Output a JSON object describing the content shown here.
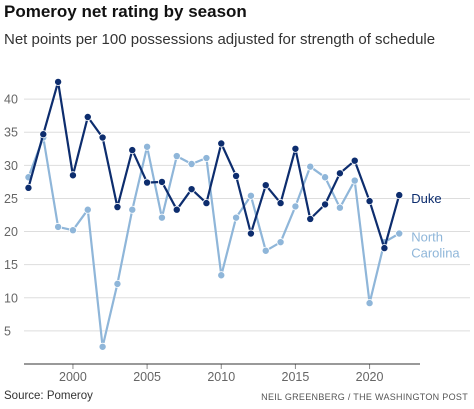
{
  "chart_data": {
    "type": "line",
    "title": "Pomeroy net rating by season",
    "subtitle": "Net points per 100 possessions adjusted for strength of schedule",
    "xlabel": "",
    "ylabel": "",
    "xlim": [
      1996.7,
      2023.4
    ],
    "ylim": [
      0,
      45
    ],
    "x_ticks": [
      2000,
      2005,
      2010,
      2015,
      2020
    ],
    "y_ticks": [
      0,
      5,
      10,
      15,
      20,
      25,
      30,
      35,
      40
    ],
    "grid": true,
    "x": [
      1997,
      1998,
      1999,
      2000,
      2001,
      2002,
      2003,
      2004,
      2005,
      2006,
      2007,
      2008,
      2009,
      2010,
      2011,
      2012,
      2013,
      2014,
      2015,
      2016,
      2017,
      2018,
      2019,
      2020,
      2021,
      2022
    ],
    "series": [
      {
        "name": "Duke",
        "name_lines": [
          "Duke"
        ],
        "color": "#0d2d6e",
        "values": [
          26.6,
          34.7,
          42.6,
          28.5,
          37.3,
          34.2,
          23.7,
          32.3,
          27.4,
          27.5,
          23.3,
          26.4,
          24.3,
          33.3,
          28.4,
          19.7,
          27.0,
          24.3,
          32.5,
          21.9,
          24.1,
          28.8,
          30.7,
          24.6,
          17.5,
          25.5
        ]
      },
      {
        "name": "North Carolina",
        "name_lines": [
          "North",
          "Carolina"
        ],
        "color": "#8fb6d9",
        "values": [
          28.2,
          34.2,
          20.7,
          20.2,
          23.3,
          2.6,
          12.1,
          23.3,
          32.8,
          22.1,
          31.4,
          30.2,
          31.1,
          13.4,
          22.1,
          25.4,
          17.1,
          18.4,
          23.8,
          29.8,
          28.2,
          23.6,
          27.7,
          9.2,
          18.4,
          19.7
        ]
      }
    ]
  },
  "footer": {
    "source": "Source: Pomeroy",
    "credit": "NEIL GREENBERG / THE WASHINGTON POST"
  }
}
